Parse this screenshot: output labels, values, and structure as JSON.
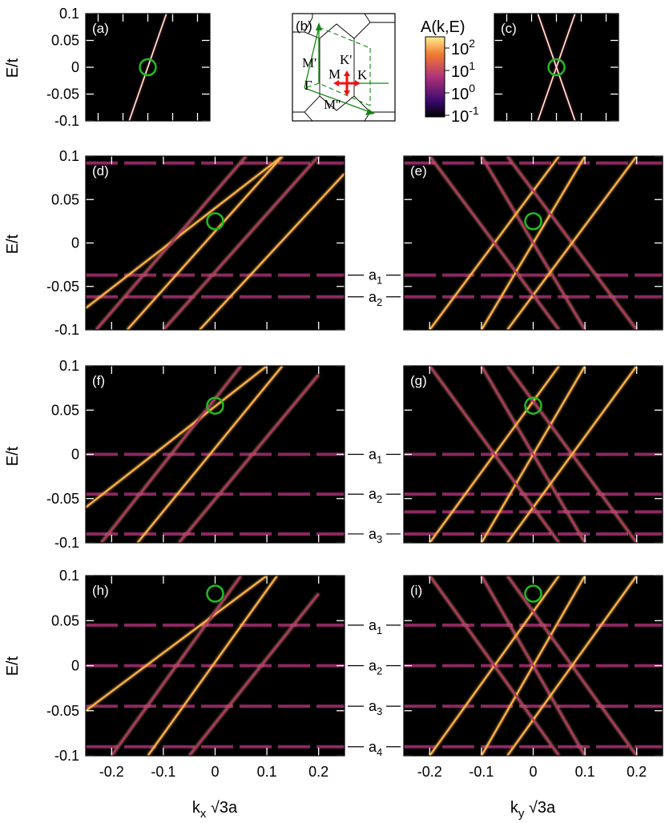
{
  "colors": {
    "background": "#000000",
    "band_low": "#3a0a6e",
    "band_mid": "#b0327a",
    "band_high": "#ffb347",
    "band_peak": "#fff2c4",
    "marker": "#22bb22",
    "bz_green": "#118811",
    "bz_red": "#ee1111"
  },
  "axis_labels": {
    "energy": "E/t",
    "kx": "k",
    "kx_sub": "x",
    "kx_suffix": " √3a",
    "ky": "k",
    "ky_sub": "y",
    "ky_suffix": " √3a"
  },
  "colorbar": {
    "title": "A(k,E)",
    "ticks": [
      {
        "base": "10",
        "exp": "2"
      },
      {
        "base": "10",
        "exp": "1"
      },
      {
        "base": "10",
        "exp": "0"
      },
      {
        "base": "10",
        "exp": "-1"
      }
    ]
  },
  "bz_labels": {
    "panel": "(b)",
    "M_prime": "M'",
    "K_prime": "K'",
    "M": "M",
    "K": "K",
    "Gamma": "Γ",
    "M_dprime": "M''"
  },
  "chart_data": [
    {
      "id": "a",
      "label": "(a)",
      "type": "line",
      "xlim": [
        -0.25,
        0.25
      ],
      "ylim": [
        -0.1,
        0.1
      ],
      "yticks": [
        "0.1",
        "0.05",
        "0",
        "-0.05",
        "-0.1"
      ],
      "marker": {
        "x": 0,
        "y": 0
      },
      "series": [
        {
          "x": [
            -0.075,
            0.075
          ],
          "y": [
            -0.1,
            0.1
          ]
        }
      ]
    },
    {
      "id": "c",
      "label": "(c)",
      "type": "line",
      "xlim": [
        -0.25,
        0.25
      ],
      "ylim": [
        -0.1,
        0.1
      ],
      "marker": {
        "x": 0,
        "y": 0
      },
      "series": [
        {
          "x": [
            -0.075,
            0.075
          ],
          "y": [
            -0.1,
            0.1
          ]
        },
        {
          "x": [
            -0.075,
            0.075
          ],
          "y": [
            0.1,
            -0.1
          ]
        }
      ]
    },
    {
      "id": "d",
      "label": "(d)",
      "type": "line",
      "xlim": [
        -0.25,
        0.25
      ],
      "ylim": [
        -0.1,
        0.1
      ],
      "yticks": [
        "0.1",
        "0.05",
        "0",
        "-0.05",
        "-0.1"
      ],
      "marker": {
        "x": 0,
        "y": 0.025
      },
      "levels": [
        {
          "name": "a1",
          "y": -0.037
        },
        {
          "name": "a2",
          "y": -0.062
        }
      ],
      "flats": [
        -0.037,
        -0.062,
        0.092
      ],
      "series": [
        {
          "x": [
            -0.25,
            0.13
          ],
          "y": [
            -0.075,
            0.1
          ]
        },
        {
          "x": [
            -0.23,
            0.06
          ],
          "y": [
            -0.1,
            0.1
          ]
        },
        {
          "x": [
            -0.17,
            0.13
          ],
          "y": [
            -0.1,
            0.1
          ]
        },
        {
          "x": [
            -0.1,
            0.2
          ],
          "y": [
            -0.1,
            0.1
          ]
        },
        {
          "x": [
            -0.03,
            0.25
          ],
          "y": [
            -0.1,
            0.08
          ]
        }
      ]
    },
    {
      "id": "e",
      "label": "(e)",
      "type": "line",
      "xlim": [
        -0.25,
        0.25
      ],
      "ylim": [
        -0.1,
        0.1
      ],
      "marker": {
        "x": 0,
        "y": 0.025
      },
      "flats": [
        -0.037,
        -0.062,
        0.092
      ],
      "series": [
        {
          "x": [
            -0.1,
            0.1
          ],
          "y": [
            -0.1,
            0.1
          ]
        },
        {
          "x": [
            -0.1,
            0.1
          ],
          "y": [
            0.1,
            -0.1
          ]
        },
        {
          "x": [
            -0.2,
            0.05
          ],
          "y": [
            -0.1,
            0.1
          ]
        },
        {
          "x": [
            -0.05,
            0.2
          ],
          "y": [
            0.1,
            -0.1
          ]
        },
        {
          "x": [
            -0.05,
            0.2
          ],
          "y": [
            -0.1,
            0.1
          ]
        },
        {
          "x": [
            -0.2,
            0.05
          ],
          "y": [
            0.1,
            -0.1
          ]
        }
      ]
    },
    {
      "id": "f",
      "label": "(f)",
      "type": "line",
      "xlim": [
        -0.25,
        0.25
      ],
      "ylim": [
        -0.1,
        0.1
      ],
      "yticks": [
        "0.1",
        "0.05",
        "0",
        "-0.05",
        "-0.1"
      ],
      "marker": {
        "x": 0,
        "y": 0.055
      },
      "levels": [
        {
          "name": "a1",
          "y": 0
        },
        {
          "name": "a2",
          "y": -0.045
        },
        {
          "name": "a3",
          "y": -0.09
        }
      ],
      "flats": [
        0,
        -0.045,
        -0.09
      ],
      "series": [
        {
          "x": [
            -0.25,
            0.1
          ],
          "y": [
            -0.06,
            0.1
          ]
        },
        {
          "x": [
            -0.22,
            0.05
          ],
          "y": [
            -0.1,
            0.1
          ]
        },
        {
          "x": [
            -0.15,
            0.13
          ],
          "y": [
            -0.1,
            0.1
          ]
        },
        {
          "x": [
            -0.07,
            0.2
          ],
          "y": [
            -0.1,
            0.09
          ]
        }
      ]
    },
    {
      "id": "g",
      "label": "(g)",
      "type": "line",
      "xlim": [
        -0.25,
        0.25
      ],
      "ylim": [
        -0.1,
        0.1
      ],
      "marker": {
        "x": 0,
        "y": 0.055
      },
      "flats": [
        0,
        -0.045,
        -0.065,
        -0.09
      ],
      "series": [
        {
          "x": [
            -0.1,
            0.1
          ],
          "y": [
            -0.1,
            0.1
          ]
        },
        {
          "x": [
            -0.1,
            0.1
          ],
          "y": [
            0.1,
            -0.1
          ]
        },
        {
          "x": [
            -0.2,
            0.05
          ],
          "y": [
            -0.1,
            0.1
          ]
        },
        {
          "x": [
            -0.05,
            0.2
          ],
          "y": [
            0.1,
            -0.1
          ]
        },
        {
          "x": [
            -0.05,
            0.2
          ],
          "y": [
            -0.1,
            0.1
          ]
        },
        {
          "x": [
            -0.2,
            0.05
          ],
          "y": [
            0.1,
            -0.1
          ]
        }
      ]
    },
    {
      "id": "h",
      "label": "(h)",
      "type": "line",
      "xlim": [
        -0.25,
        0.25
      ],
      "ylim": [
        -0.1,
        0.1
      ],
      "xticks": [
        "-0.2",
        "-0.1",
        "0",
        "0.1",
        "0.2"
      ],
      "yticks": [
        "0.1",
        "0.05",
        "0",
        "-0.05",
        "-0.1"
      ],
      "marker": {
        "x": 0,
        "y": 0.08
      },
      "levels": [
        {
          "name": "a1",
          "y": 0.045
        },
        {
          "name": "a2",
          "y": 0
        },
        {
          "name": "a3",
          "y": -0.045
        },
        {
          "name": "a4",
          "y": -0.09
        }
      ],
      "flats": [
        0.045,
        0,
        -0.045,
        -0.09
      ],
      "series": [
        {
          "x": [
            -0.25,
            0.1
          ],
          "y": [
            -0.05,
            0.1
          ]
        },
        {
          "x": [
            -0.2,
            0.05
          ],
          "y": [
            -0.1,
            0.1
          ]
        },
        {
          "x": [
            -0.13,
            0.12
          ],
          "y": [
            -0.1,
            0.1
          ]
        },
        {
          "x": [
            -0.05,
            0.2
          ],
          "y": [
            -0.1,
            0.08
          ]
        }
      ]
    },
    {
      "id": "i",
      "label": "(i)",
      "type": "line",
      "xlim": [
        -0.25,
        0.25
      ],
      "ylim": [
        -0.1,
        0.1
      ],
      "xticks": [
        "-0.2",
        "-0.1",
        "0",
        "0.1",
        "0.2"
      ],
      "marker": {
        "x": 0,
        "y": 0.08
      },
      "flats": [
        0.045,
        0,
        -0.045,
        -0.09
      ],
      "series": [
        {
          "x": [
            -0.1,
            0.1
          ],
          "y": [
            -0.1,
            0.1
          ]
        },
        {
          "x": [
            -0.1,
            0.1
          ],
          "y": [
            0.1,
            -0.1
          ]
        },
        {
          "x": [
            -0.2,
            0.05
          ],
          "y": [
            -0.1,
            0.1
          ]
        },
        {
          "x": [
            -0.05,
            0.2
          ],
          "y": [
            0.1,
            -0.1
          ]
        },
        {
          "x": [
            -0.05,
            0.2
          ],
          "y": [
            -0.1,
            0.1
          ]
        },
        {
          "x": [
            -0.2,
            0.05
          ],
          "y": [
            0.1,
            -0.1
          ]
        }
      ]
    }
  ]
}
